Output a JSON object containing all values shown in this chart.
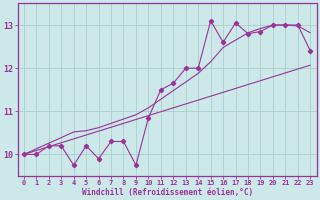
{
  "x": [
    0,
    1,
    2,
    3,
    4,
    5,
    6,
    7,
    8,
    9,
    10,
    11,
    12,
    13,
    14,
    15,
    16,
    17,
    18,
    19,
    20,
    21,
    22,
    23
  ],
  "y_main": [
    10.0,
    10.0,
    10.2,
    10.2,
    9.75,
    10.2,
    9.9,
    10.3,
    10.3,
    9.75,
    10.85,
    11.5,
    11.65,
    12.0,
    12.0,
    13.1,
    12.6,
    13.05,
    12.8,
    12.85,
    13.0,
    13.0,
    13.0,
    12.4
  ],
  "y_trend_low": [
    10.0,
    10.09,
    10.18,
    10.27,
    10.36,
    10.45,
    10.54,
    10.63,
    10.72,
    10.81,
    10.9,
    10.99,
    11.08,
    11.17,
    11.26,
    11.35,
    11.44,
    11.53,
    11.62,
    11.71,
    11.8,
    11.89,
    11.98,
    12.07
  ],
  "y_trend_high": [
    10.0,
    10.13,
    10.26,
    10.39,
    10.52,
    10.55,
    10.62,
    10.72,
    10.82,
    10.92,
    11.08,
    11.28,
    11.48,
    11.68,
    11.88,
    12.15,
    12.48,
    12.65,
    12.82,
    12.92,
    13.0,
    13.0,
    12.98,
    12.82
  ],
  "line_color": "#993399",
  "bg_color": "#cce8e8",
  "grid_color": "#aacece",
  "axis_color": "#993399",
  "xlabel": "Windchill (Refroidissement éolien,°C)",
  "ylim": [
    9.5,
    13.5
  ],
  "xlim": [
    -0.5,
    23.5
  ],
  "yticks": [
    10,
    11,
    12,
    13
  ],
  "xticks": [
    0,
    1,
    2,
    3,
    4,
    5,
    6,
    7,
    8,
    9,
    10,
    11,
    12,
    13,
    14,
    15,
    16,
    17,
    18,
    19,
    20,
    21,
    22,
    23
  ],
  "tick_fontsize": 5.0,
  "label_fontsize": 5.5,
  "ytick_fontsize": 6.0
}
